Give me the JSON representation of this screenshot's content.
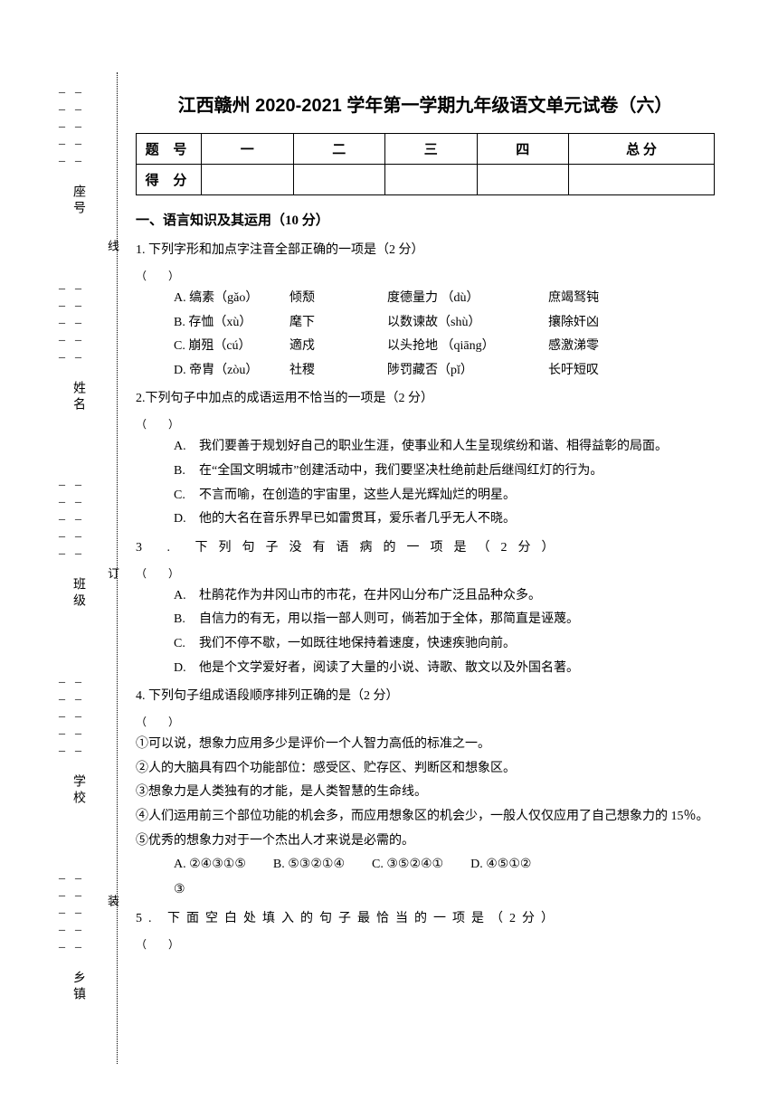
{
  "title": "江西赣州 2020-2021 学年第一学期九年级语文单元试卷（六）",
  "binding": {
    "labels": [
      "座号",
      "姓名",
      "班级",
      "学校",
      "乡镇"
    ],
    "marks": [
      "线",
      "订",
      "装"
    ]
  },
  "scoreTable": {
    "row1": [
      "题 号",
      "一",
      "二",
      "三",
      "四",
      "总 分"
    ],
    "row2Label": "得 分"
  },
  "section1": {
    "header": "一、语言知识及其运用（10 分）",
    "q1": {
      "stem": "1. 下列字形和加点字注音全部正确的一项是（2 分）",
      "paren": "（　　）",
      "options": [
        {
          "label": "A.",
          "c1": "缟素（gǎo）",
          "c2": "倾颓",
          "c3": "度德量力  （dù）",
          "c4": "庶竭驽钝"
        },
        {
          "label": "B.",
          "c1": "存恤（xù）",
          "c2": "麾下",
          "c3": "以数谏故（shù）",
          "c4": "攘除奸凶"
        },
        {
          "label": "C.",
          "c1": "崩殂（cú）",
          "c2": "適戍",
          "c3": "以头抢地  （qiāng）",
          "c4": "感激涕零"
        },
        {
          "label": "D.",
          "c1": "帝胄（zòu）",
          "c2": "社稷",
          "c3": "陟罚藏否（pǐ）",
          "c4": "长吁短叹"
        }
      ]
    },
    "q2": {
      "stem": "2.下列句子中加点的成语运用不恰当的一项是（2 分）",
      "paren": "（　　）",
      "options": [
        {
          "label": "A.",
          "text": "我们要善于规划好自己的职业生涯，使事业和人生呈现缤纷和谐、相得益彰的局面。"
        },
        {
          "label": "B.",
          "text": "在“全国文明城市”创建活动中，我们要坚决杜绝前赴后继闯红灯的行为。"
        },
        {
          "label": "C.",
          "text": "不言而喻，在创造的宇宙里，这些人是光辉灿烂的明星。"
        },
        {
          "label": "D.",
          "text": "他的大名在音乐界早已如雷贯耳，爱乐者几乎无人不晓。"
        }
      ]
    },
    "q3": {
      "stem": "3 . 下列句子没有语病的一项是（2分）",
      "paren": "（　　）",
      "options": [
        {
          "label": "A.",
          "text": "杜鹃花作为井冈山市的市花，在井冈山分布广泛且品种众多。"
        },
        {
          "label": "B.",
          "text": "自信力的有无，用以指一部人则可，倘若加于全体，那简直是诬蔑。"
        },
        {
          "label": "C.",
          "text": "我们不停不歇，一如既往地保持着速度，快速疾驰向前。"
        },
        {
          "label": "D.",
          "text": "他是个文学爱好者，阅读了大量的小说、诗歌、散文以及外国名著。"
        }
      ]
    },
    "q4": {
      "stem": "4. 下列句子组成语段顺序排列正确的是（2 分）",
      "paren": "（　　）",
      "sequence": [
        "①可以说，想象力应用多少是评价一个人智力高低的标准之一。",
        "②人的大脑具有四个功能部位：感受区、贮存区、判断区和想象区。",
        "③想象力是人类独有的才能，是人类智慧的生命线。",
        "④人们运用前三个部位功能的机会多，而应用想象区的机会少，一般人仅仅应用了自己想象力的 15％。",
        "⑤优秀的想象力对于一个杰出人才来说是必需的。"
      ],
      "choices": [
        {
          "label": "A.",
          "text": "②④③①⑤"
        },
        {
          "label": "B.",
          "text": "⑤③②①④"
        },
        {
          "label": "C.",
          "text": "③⑤②④①"
        },
        {
          "label": "D.",
          "text": "④⑤①②"
        }
      ],
      "lastLine": "③"
    },
    "q5": {
      "stem": "5. 下面空白处填入的句子最恰当的一项是（2分）",
      "paren": "（　　）"
    }
  }
}
